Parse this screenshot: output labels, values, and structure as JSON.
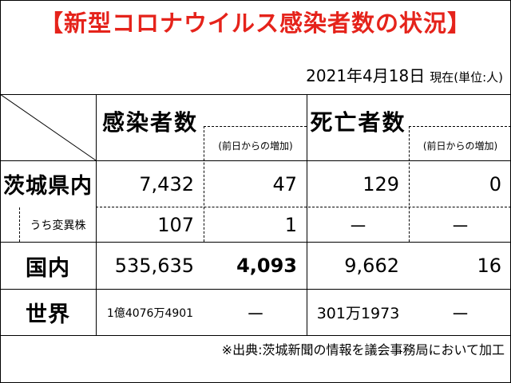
{
  "title": "【新型コロナウイルス感染者数の状況】",
  "date": "2021年4月18日",
  "date_unit": "現在(単位:人)",
  "headers": {
    "infections": "感染者数",
    "infections_change": "(前日からの増加)",
    "deaths": "死亡者数",
    "deaths_change": "(前日からの増加)"
  },
  "rows": [
    {
      "label": "茨城県内",
      "infections": "7,432",
      "infections_change": "47",
      "deaths": "129",
      "deaths_change": "0"
    },
    {
      "label": "うち変異株",
      "infections": "107",
      "infections_change": "1",
      "deaths": "－",
      "deaths_change": "－"
    },
    {
      "label": "国内",
      "infections": "535,635",
      "infections_change": "4,093",
      "deaths": "9,662",
      "deaths_change": "16"
    },
    {
      "label": "世界",
      "infections": "1億4076万4901",
      "infections_change": "－",
      "deaths": "301万1973",
      "deaths_change": "－"
    }
  ],
  "source_note": "※出典:茨城新聞の情報を議会事務局において加工"
}
